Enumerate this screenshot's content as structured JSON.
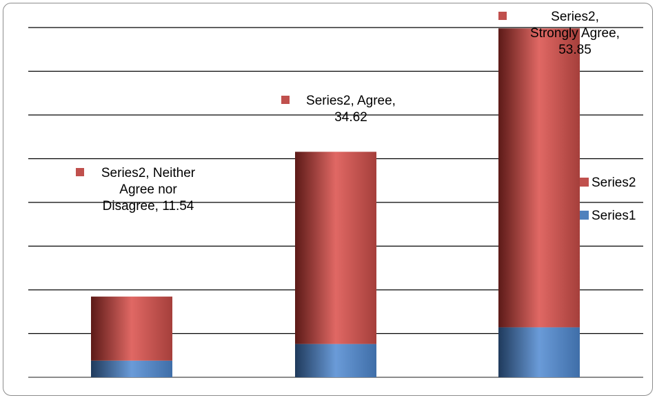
{
  "chart_data": {
    "type": "bar",
    "stacked": true,
    "categories": [
      "Neither Agree nor Disagree",
      "Agree",
      "Strongly Agree"
    ],
    "series": [
      {
        "name": "Series1",
        "values": [
          3,
          6,
          9
        ],
        "color": "#4f81bd"
      },
      {
        "name": "Series2",
        "values": [
          11.54,
          34.62,
          53.85
        ],
        "color": "#c0504d"
      }
    ],
    "data_labels": [
      {
        "lines": [
          "Series2, Neither",
          "Agree nor",
          "Disagree, 11.54"
        ]
      },
      {
        "lines": [
          "Series2, Agree,",
          "34.62"
        ]
      },
      {
        "lines": [
          "Series2,",
          "Strongly Agree,",
          "53.85"
        ]
      }
    ],
    "legend": {
      "position": "right",
      "items": [
        "Series2",
        "Series1"
      ]
    },
    "ylim": [
      0,
      63
    ],
    "grid": true,
    "gridline_count": 9,
    "axis_labels_shown": false
  }
}
